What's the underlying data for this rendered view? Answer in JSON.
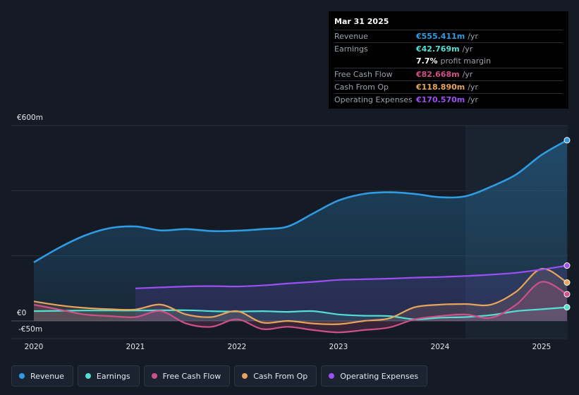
{
  "tooltip": {
    "date": "Mar 31 2025",
    "rows": [
      {
        "label": "Revenue",
        "value": "€555.411m",
        "unit": "/yr",
        "color": "#2f9be3"
      },
      {
        "label": "Earnings",
        "value": "€42.769m",
        "unit": "/yr",
        "color": "#52e0d2"
      },
      {
        "label": "",
        "value": "7.7%",
        "unit": "profit margin",
        "color": "#ffffff"
      },
      {
        "label": "Free Cash Flow",
        "value": "€82.668m",
        "unit": "/yr",
        "color": "#d0508a"
      },
      {
        "label": "Cash From Op",
        "value": "€118.890m",
        "unit": "/yr",
        "color": "#e9a65a"
      },
      {
        "label": "Operating Expenses",
        "value": "€170.570m",
        "unit": "/yr",
        "color": "#9d4ff5"
      }
    ]
  },
  "chart_data": {
    "type": "area",
    "y_tick_labels": [
      "€600m",
      "€0",
      "-€50m"
    ],
    "ylim": [
      -50,
      600
    ],
    "x_tick_labels": [
      "2020",
      "2021",
      "2022",
      "2023",
      "2024",
      "2025"
    ],
    "xlim": [
      2020.0,
      2025.25
    ],
    "forecast_band_start": 2024.25,
    "series": [
      {
        "name": "Revenue",
        "color": "#2f9be3",
        "x": [
          2020.0,
          2020.25,
          2020.5,
          2020.75,
          2021.0,
          2021.25,
          2021.5,
          2021.75,
          2022.0,
          2022.25,
          2022.5,
          2022.75,
          2023.0,
          2023.25,
          2023.5,
          2023.75,
          2024.0,
          2024.25,
          2024.5,
          2024.75,
          2025.0,
          2025.25
        ],
        "y": [
          180,
          225,
          262,
          285,
          290,
          278,
          282,
          276,
          277,
          282,
          290,
          330,
          370,
          390,
          395,
          390,
          380,
          383,
          412,
          450,
          510,
          555
        ]
      },
      {
        "name": "Earnings",
        "color": "#52e0d2",
        "x": [
          2020.0,
          2020.5,
          2021.0,
          2021.5,
          2021.75,
          2022.0,
          2022.25,
          2022.5,
          2022.75,
          2023.0,
          2023.25,
          2023.5,
          2023.75,
          2024.0,
          2024.25,
          2024.5,
          2024.75,
          2025.0,
          2025.25
        ],
        "y": [
          30,
          32,
          32,
          33,
          30,
          29,
          30,
          28,
          30,
          20,
          16,
          15,
          5,
          10,
          12,
          18,
          30,
          36,
          42
        ]
      },
      {
        "name": "Free Cash Flow",
        "color": "#d0508a",
        "x": [
          2020.0,
          2020.25,
          2020.5,
          2020.75,
          2021.0,
          2021.25,
          2021.5,
          2021.75,
          2022.0,
          2022.25,
          2022.5,
          2022.75,
          2023.0,
          2023.25,
          2023.5,
          2023.75,
          2024.0,
          2024.25,
          2024.5,
          2024.75,
          2025.0,
          2025.25
        ],
        "y": [
          50,
          35,
          20,
          15,
          12,
          30,
          -8,
          -18,
          5,
          -25,
          -18,
          -28,
          -35,
          -28,
          -20,
          5,
          15,
          20,
          10,
          50,
          120,
          82
        ]
      },
      {
        "name": "Cash From Op",
        "color": "#e9a65a",
        "x": [
          2020.0,
          2020.25,
          2020.5,
          2020.75,
          2021.0,
          2021.25,
          2021.5,
          2021.75,
          2022.0,
          2022.25,
          2022.5,
          2022.75,
          2023.0,
          2023.25,
          2023.5,
          2023.75,
          2024.0,
          2024.25,
          2024.5,
          2024.75,
          2025.0,
          2025.25
        ],
        "y": [
          60,
          48,
          40,
          36,
          35,
          50,
          20,
          12,
          30,
          -5,
          0,
          -8,
          -10,
          0,
          8,
          42,
          50,
          52,
          50,
          90,
          160,
          118
        ]
      },
      {
        "name": "Operating Expenses",
        "color": "#9d4ff5",
        "x": [
          2021.0,
          2021.25,
          2021.5,
          2021.75,
          2022.0,
          2022.25,
          2022.5,
          2022.75,
          2023.0,
          2023.25,
          2023.5,
          2023.75,
          2024.0,
          2024.25,
          2024.5,
          2024.75,
          2025.0,
          2025.25
        ],
        "y": [
          100,
          103,
          106,
          107,
          106,
          109,
          115,
          120,
          126,
          128,
          130,
          133,
          135,
          138,
          142,
          148,
          158,
          170
        ]
      }
    ],
    "legend": [
      "Revenue",
      "Earnings",
      "Free Cash Flow",
      "Cash From Op",
      "Operating Expenses"
    ]
  }
}
